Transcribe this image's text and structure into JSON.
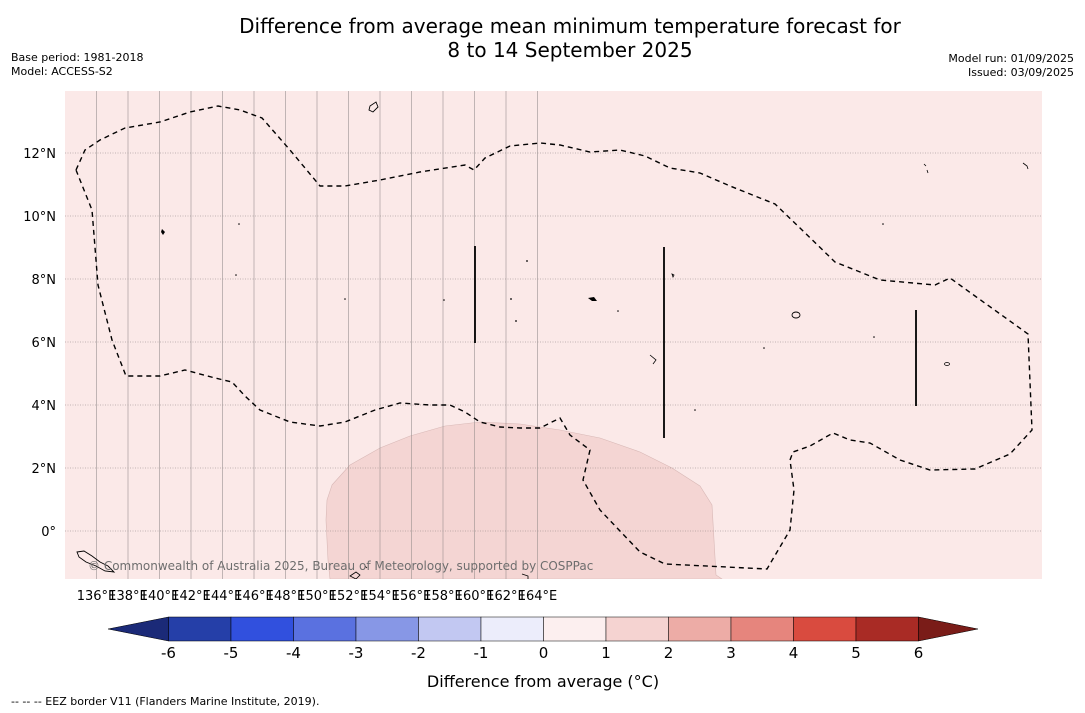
{
  "title_line1": "Difference from average mean minimum temperature forecast for",
  "title_line2": "8 to 14 September 2025",
  "base_period": "Base period: 1981-2018",
  "model": "Model: ACCESS-S2",
  "model_run": "Model run: 01/09/2025",
  "issued": "Issued: 03/09/2025",
  "copyright": "© Commonwealth of Australia 2025, Bureau of Meteorology, supported by COSPPac",
  "lon_ticks": [
    "136°E",
    "138°E",
    "140°E",
    "142°E",
    "144°E",
    "146°E",
    "148°E",
    "150°E",
    "152°E",
    "154°E",
    "156°E",
    "158°E",
    "160°E",
    "162°E",
    "164°E"
  ],
  "lat_ticks": [
    "12°N",
    "10°N",
    "8°N",
    "6°N",
    "4°N",
    "2°N",
    "0°"
  ],
  "colorbar": {
    "label": "Difference from average (°C)",
    "ticks": [
      "-6",
      "-5",
      "-4",
      "-3",
      "-2",
      "-1",
      "0",
      "1",
      "2",
      "3",
      "4",
      "5",
      "6"
    ],
    "colors": [
      "#253fa8",
      "#3150de",
      "#5a71e0",
      "#8797e6",
      "#c2c8f2",
      "#ecedfb",
      "#fcefef",
      "#f5d3d1",
      "#edaca6",
      "#e6857d",
      "#d94b3f",
      "#a92b25"
    ],
    "under_color": "#1b2a78",
    "over_color": "#7a1c18"
  },
  "map": {
    "background_color": "#fbe9e8",
    "anomaly_area_color": "#f4d5d3",
    "background_class": "0 to 1",
    "anomaly_area_class": "1 to 2"
  },
  "footnote": "--  --  -- EEZ border V11 (Flanders Marine Institute, 2019)."
}
